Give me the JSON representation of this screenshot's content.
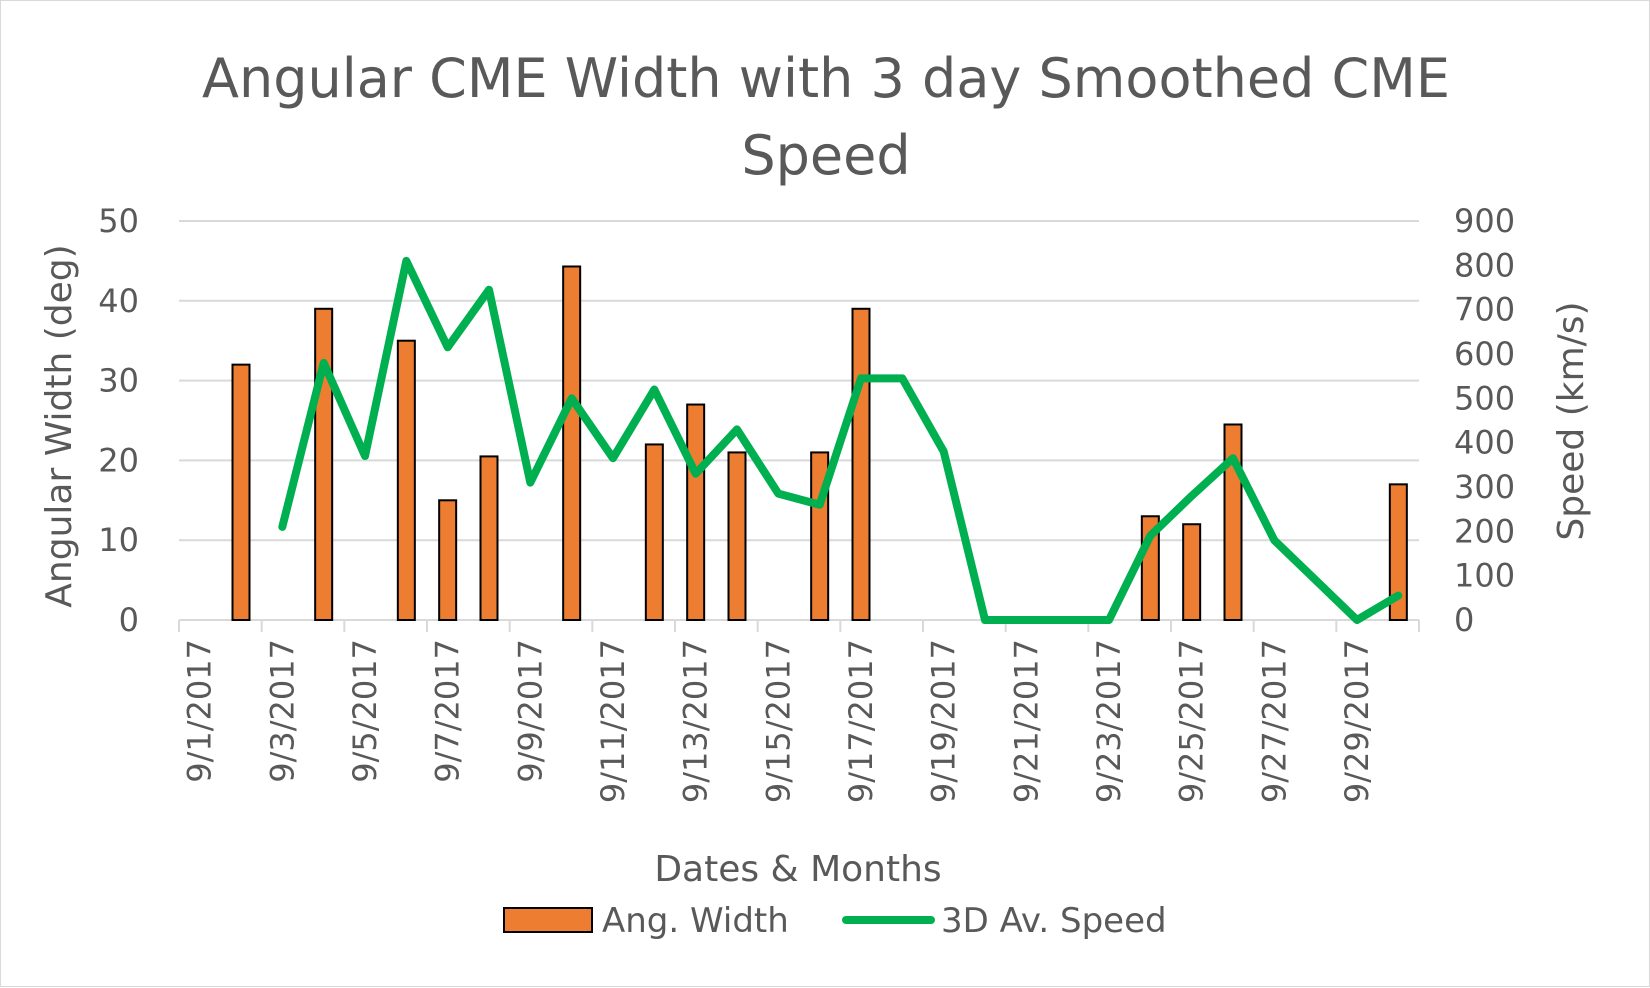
{
  "chart_data": {
    "type": "bar",
    "title": "Angular CME Width with 3 day Smoothed CME Speed",
    "title_lines": [
      "Angular CME Width with 3 day Smoothed CME",
      "Speed"
    ],
    "xlabel": "Dates & Months",
    "ylabel": "Angular Width (deg)",
    "y2label": "Speed (km/s)",
    "ylim": [
      0,
      50
    ],
    "y2lim": [
      0,
      900
    ],
    "yticks": [
      0,
      10,
      20,
      30,
      40,
      50
    ],
    "y2ticks": [
      0,
      100,
      200,
      300,
      400,
      500,
      600,
      700,
      800,
      900
    ],
    "categories": [
      "9/1/2017",
      "9/2/2017",
      "9/3/2017",
      "9/4/2017",
      "9/5/2017",
      "9/6/2017",
      "9/7/2017",
      "9/8/2017",
      "9/9/2017",
      "9/10/2017",
      "9/11/2017",
      "9/12/2017",
      "9/13/2017",
      "9/14/2017",
      "9/15/2017",
      "9/16/2017",
      "9/17/2017",
      "9/18/2017",
      "9/19/2017",
      "9/20/2017",
      "9/21/2017",
      "9/22/2017",
      "9/23/2017",
      "9/24/2017",
      "9/25/2017",
      "9/26/2017",
      "9/27/2017",
      "9/28/2017",
      "9/29/2017",
      "9/30/2017"
    ],
    "tick_labels": [
      "9/1/2017",
      "9/3/2017",
      "9/5/2017",
      "9/7/2017",
      "9/9/2017",
      "9/11/2017",
      "9/13/2017",
      "9/15/2017",
      "9/17/2017",
      "9/19/2017",
      "9/21/2017",
      "9/23/2017",
      "9/25/2017",
      "9/27/2017",
      "9/29/2017"
    ],
    "legend_position": "bottom",
    "series": [
      {
        "name": "Ang. Width",
        "type": "bar",
        "axis": "left",
        "color": "#ED7D31",
        "values": [
          null,
          32,
          null,
          39,
          null,
          35,
          15,
          20.5,
          null,
          44.3,
          null,
          22,
          27,
          21,
          null,
          21,
          39,
          null,
          null,
          null,
          null,
          null,
          null,
          13,
          12,
          24.5,
          null,
          null,
          null,
          17
        ]
      },
      {
        "name": "3D Av. Speed",
        "type": "line",
        "axis": "right",
        "color": "#00B050",
        "values": [
          null,
          null,
          210,
          580,
          370,
          810,
          615,
          745,
          310,
          500,
          365,
          520,
          330,
          430,
          285,
          260,
          545,
          545,
          380,
          0,
          0,
          0,
          0,
          190,
          280,
          365,
          180,
          90,
          0,
          55
        ]
      }
    ]
  }
}
